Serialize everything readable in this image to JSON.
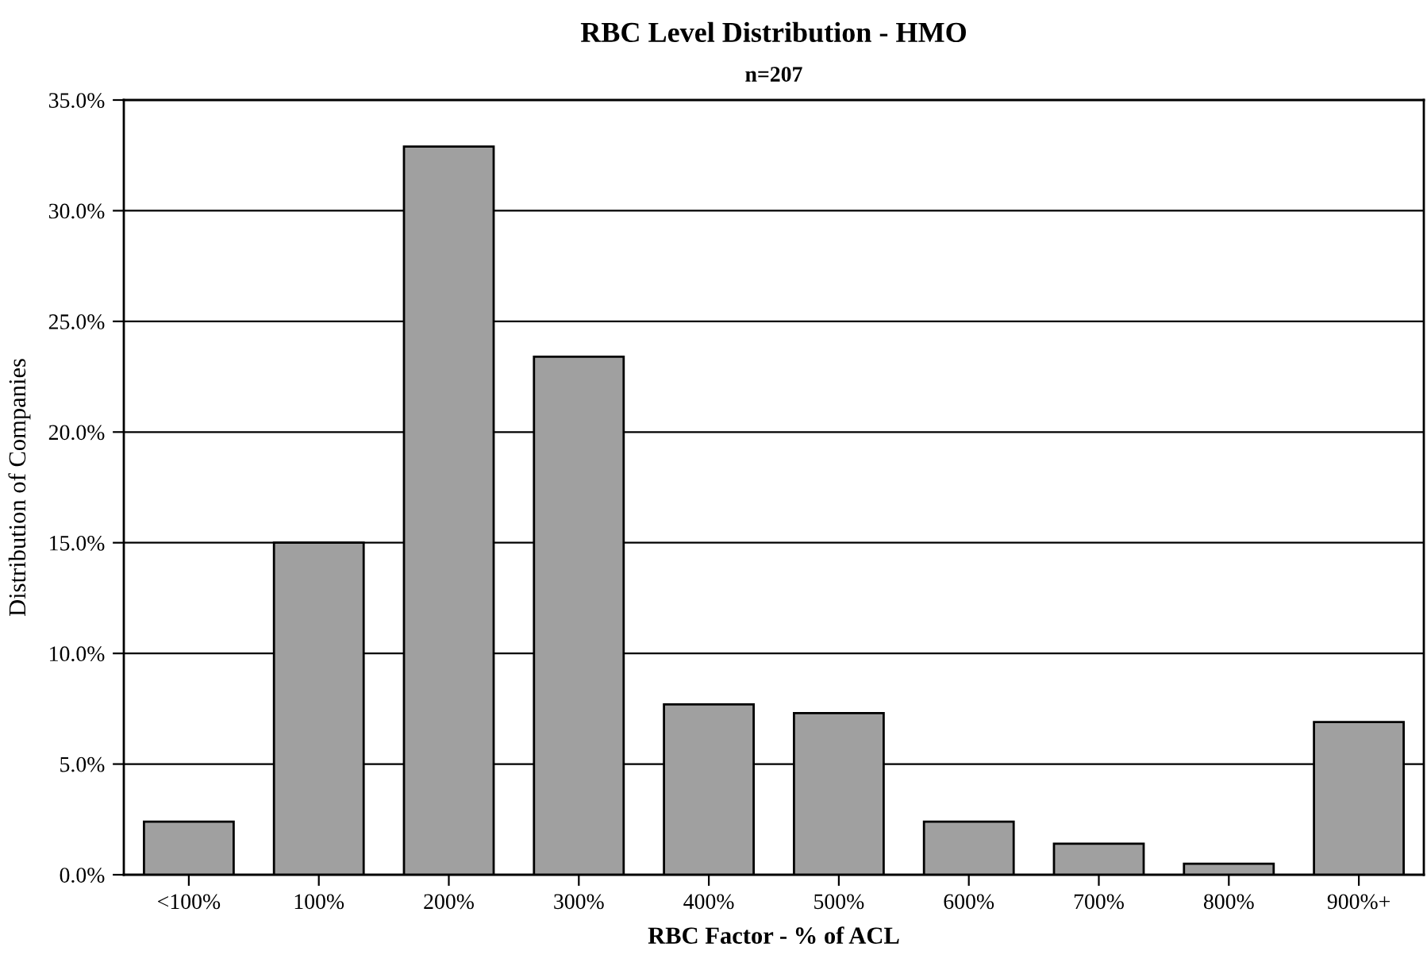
{
  "chart_data": {
    "type": "bar",
    "title": "RBC Level Distribution - HMO",
    "subtitle": "n=207",
    "xlabel": "RBC Factor - % of ACL",
    "ylabel": "Distribution of Companies",
    "categories": [
      "<100%",
      "100%",
      "200%",
      "300%",
      "400%",
      "500%",
      "600%",
      "700%",
      "800%",
      "900%+"
    ],
    "values": [
      2.4,
      15.0,
      32.9,
      23.4,
      7.7,
      7.3,
      2.4,
      1.4,
      0.5,
      6.9
    ],
    "color": "#a0a0a0",
    "ylim": [
      0,
      35
    ],
    "yticks": [
      {
        "value": 0,
        "label": "0.0%"
      },
      {
        "value": 5,
        "label": "5.0%"
      },
      {
        "value": 10,
        "label": "10.0%"
      },
      {
        "value": 15,
        "label": "15.0%"
      },
      {
        "value": 20,
        "label": "20.0%"
      },
      {
        "value": 25,
        "label": "25.0%"
      },
      {
        "value": 30,
        "label": "30.0%"
      },
      {
        "value": 35,
        "label": "35.0%"
      }
    ],
    "grid": "y",
    "legend": false
  }
}
